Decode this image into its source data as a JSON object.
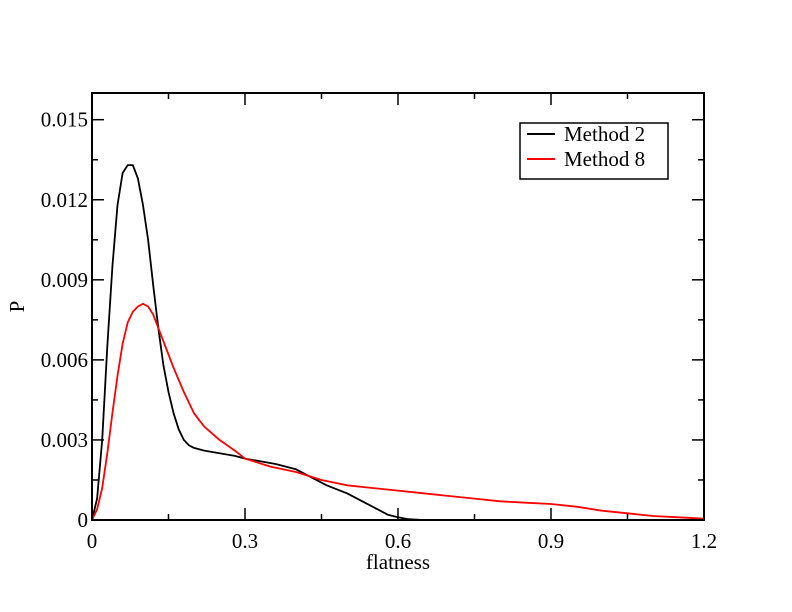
{
  "chart_data": {
    "type": "line",
    "xlabel": "flatness",
    "ylabel": "P",
    "xlim": [
      0,
      1.2
    ],
    "ylim": [
      0,
      0.016
    ],
    "x_ticks": [
      "0",
      "0.3",
      "0.6",
      "0.9",
      "1.2"
    ],
    "y_ticks": [
      "0",
      "0.003",
      "0.006",
      "0.009",
      "0.012",
      "0.015"
    ],
    "grid": false,
    "legend_position": "top-right",
    "series": [
      {
        "name": "Method 2",
        "color": "#000000",
        "x": [
          0,
          0.01,
          0.02,
          0.03,
          0.04,
          0.05,
          0.06,
          0.07,
          0.08,
          0.09,
          0.1,
          0.11,
          0.12,
          0.13,
          0.14,
          0.15,
          0.16,
          0.17,
          0.18,
          0.19,
          0.2,
          0.22,
          0.25,
          0.28,
          0.3,
          0.33,
          0.36,
          0.38,
          0.4,
          0.43,
          0.46,
          0.5,
          0.53,
          0.56,
          0.58,
          0.6,
          0.62,
          0.65
        ],
        "y": [
          0,
          0.0008,
          0.003,
          0.0065,
          0.0095,
          0.0118,
          0.013,
          0.0133,
          0.0133,
          0.0128,
          0.0118,
          0.0105,
          0.0088,
          0.0072,
          0.0058,
          0.0048,
          0.004,
          0.0034,
          0.003,
          0.0028,
          0.0027,
          0.0026,
          0.0025,
          0.0024,
          0.0023,
          0.0022,
          0.0021,
          0.002,
          0.0019,
          0.0016,
          0.0013,
          0.001,
          0.0007,
          0.0004,
          0.0002,
          0.0001,
          3e-05,
          0
        ]
      },
      {
        "name": "Method 8",
        "color": "#ff0000",
        "x": [
          0,
          0.01,
          0.02,
          0.03,
          0.04,
          0.05,
          0.06,
          0.07,
          0.08,
          0.09,
          0.1,
          0.11,
          0.12,
          0.13,
          0.14,
          0.15,
          0.16,
          0.18,
          0.2,
          0.22,
          0.25,
          0.28,
          0.3,
          0.35,
          0.4,
          0.45,
          0.5,
          0.55,
          0.6,
          0.65,
          0.7,
          0.75,
          0.8,
          0.85,
          0.9,
          0.95,
          1.0,
          1.05,
          1.1,
          1.15,
          1.2
        ],
        "y": [
          0,
          0.0004,
          0.0012,
          0.0025,
          0.004,
          0.0054,
          0.0066,
          0.0074,
          0.0078,
          0.008,
          0.0081,
          0.008,
          0.0077,
          0.0072,
          0.0067,
          0.0062,
          0.0057,
          0.0048,
          0.004,
          0.0035,
          0.003,
          0.0026,
          0.0023,
          0.002,
          0.0018,
          0.0015,
          0.0013,
          0.0012,
          0.0011,
          0.001,
          0.0009,
          0.0008,
          0.0007,
          0.00065,
          0.0006,
          0.0005,
          0.00035,
          0.00025,
          0.00015,
          0.0001,
          5e-05
        ]
      }
    ]
  }
}
